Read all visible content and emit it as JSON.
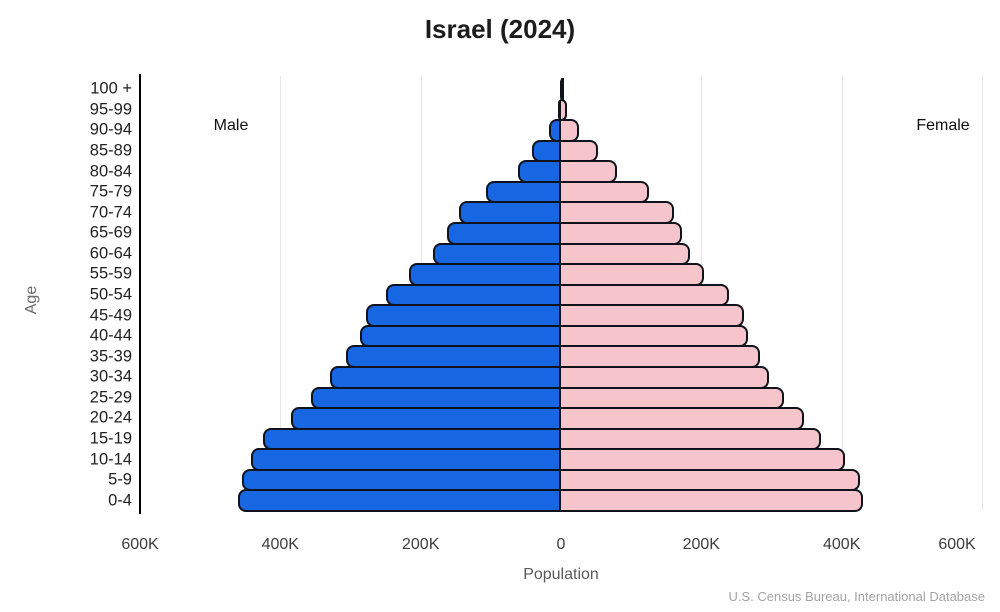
{
  "title": "Israel (2024)",
  "labels": {
    "male": "Male",
    "female": "Female",
    "x_axis": "Population",
    "y_axis": "Age"
  },
  "source": "U.S. Census Bureau, International Database",
  "colors": {
    "male_bar": "#1766e2",
    "female_bar": "#f6c5cb",
    "bar_outline": "#10121c",
    "gridline": "#e7e7e7",
    "axis_spine": "#000000"
  },
  "chart_data": {
    "type": "bar",
    "subtype": "population-pyramid",
    "title": "Israel (2024)",
    "xlabel": "Population",
    "ylabel": "Age",
    "grid": true,
    "legend_position": "inside-top",
    "axis_ticks_values": [
      -600000,
      -400000,
      -200000,
      0,
      200000,
      400000,
      600000
    ],
    "x_tick_labels": [
      "600K",
      "400K",
      "200K",
      "0",
      "200K",
      "400K",
      "600K"
    ],
    "xlim": [
      -600000,
      600000
    ],
    "categories_top_to_bottom": [
      "100 +",
      "95-99",
      "90-94",
      "85-89",
      "80-84",
      "75-79",
      "70-74",
      "65-69",
      "60-64",
      "55-59",
      "50-54",
      "45-49",
      "40-44",
      "35-39",
      "30-34",
      "25-29",
      "20-24",
      "15-19",
      "10-14",
      "5-9",
      "0-4"
    ],
    "series": [
      {
        "name": "Male",
        "side": "left",
        "color": "#1766e2",
        "values": [
          1500,
          4000,
          17000,
          42000,
          62000,
          107000,
          146000,
          162000,
          183000,
          217000,
          249000,
          278000,
          286000,
          307000,
          329000,
          356000,
          385000,
          425000,
          442000,
          455000,
          460000
        ]
      },
      {
        "name": "Female",
        "side": "right",
        "color": "#f6c5cb",
        "values": [
          3000,
          8000,
          26000,
          52000,
          80000,
          126000,
          161000,
          173000,
          184000,
          204000,
          240000,
          261000,
          267000,
          283000,
          297000,
          318000,
          346000,
          370000,
          405000,
          426000,
          430000
        ]
      }
    ],
    "source": "U.S. Census Bureau, International Database"
  }
}
